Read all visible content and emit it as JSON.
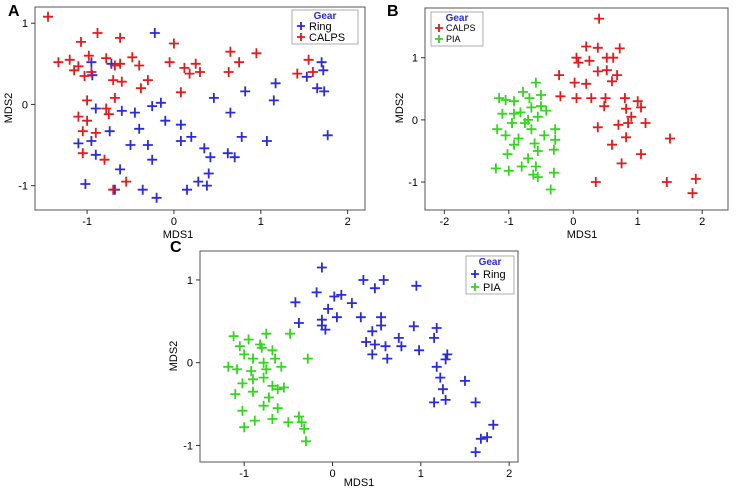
{
  "chart_data": [
    {
      "panel": "A",
      "type": "scatter",
      "title": "",
      "xlabel": "MDS1",
      "ylabel": "MDS2",
      "xlim": [
        -1.6,
        2.2
      ],
      "ylim": [
        -1.3,
        1.2
      ],
      "xticks": [
        -1,
        0,
        1,
        2
      ],
      "yticks": [
        -1,
        0,
        1
      ],
      "legend": {
        "title": "Gear",
        "position": "top-right"
      },
      "series": [
        {
          "name": "Ring",
          "color": "#2a2adf",
          "points": [
            [
              -0.22,
              0.88
            ],
            [
              -0.95,
              0.52
            ],
            [
              -0.94,
              0.36
            ],
            [
              -0.72,
              0.5
            ],
            [
              1.7,
              0.52
            ],
            [
              1.72,
              0.42
            ],
            [
              1.53,
              0.34
            ],
            [
              1.65,
              0.2
            ],
            [
              1.73,
              0.16
            ],
            [
              1.17,
              0.26
            ],
            [
              1.15,
              0.05
            ],
            [
              0.82,
              0.16
            ],
            [
              0.46,
              0.08
            ],
            [
              0.65,
              -0.1
            ],
            [
              -0.15,
              0.02
            ],
            [
              -0.25,
              -0.02
            ],
            [
              -0.6,
              -0.08
            ],
            [
              -0.45,
              -0.1
            ],
            [
              -0.9,
              -0.05
            ],
            [
              -0.1,
              -0.2
            ],
            [
              0.08,
              -0.25
            ],
            [
              -0.4,
              -0.3
            ],
            [
              -0.74,
              -0.33
            ],
            [
              -0.95,
              -0.45
            ],
            [
              -0.5,
              -0.5
            ],
            [
              0.2,
              -0.4
            ],
            [
              0.35,
              -0.54
            ],
            [
              0.08,
              -0.45
            ],
            [
              -0.3,
              -0.5
            ],
            [
              -0.25,
              -0.68
            ],
            [
              -0.62,
              -0.8
            ],
            [
              -0.9,
              -0.62
            ],
            [
              0.78,
              -0.4
            ],
            [
              0.62,
              -0.6
            ],
            [
              0.7,
              -0.65
            ],
            [
              1.07,
              -0.45
            ],
            [
              1.77,
              -0.38
            ],
            [
              0.42,
              -0.65
            ],
            [
              0.4,
              -0.85
            ],
            [
              0.38,
              -1.0
            ],
            [
              0.15,
              -1.05
            ],
            [
              -0.36,
              -1.05
            ],
            [
              -1.02,
              -0.98
            ],
            [
              -0.68,
              -1.05
            ],
            [
              -0.2,
              -1.15
            ],
            [
              0.28,
              -0.95
            ],
            [
              -1.1,
              -0.48
            ]
          ]
        },
        {
          "name": "CALPS",
          "color": "#e41a1c",
          "points": [
            [
              -1.45,
              1.08
            ],
            [
              -1.07,
              0.77
            ],
            [
              -0.88,
              0.88
            ],
            [
              -0.62,
              0.82
            ],
            [
              -1.33,
              0.52
            ],
            [
              -1.2,
              0.55
            ],
            [
              -0.98,
              0.6
            ],
            [
              -0.78,
              0.57
            ],
            [
              -0.48,
              0.58
            ],
            [
              -0.68,
              0.48
            ],
            [
              -0.62,
              0.5
            ],
            [
              -0.4,
              0.48
            ],
            [
              -1.1,
              0.47
            ],
            [
              -0.95,
              0.4
            ],
            [
              -1.15,
              0.42
            ],
            [
              -1.03,
              0.35
            ],
            [
              -0.7,
              0.3
            ],
            [
              -0.6,
              0.28
            ],
            [
              0.0,
              0.75
            ],
            [
              0.65,
              0.65
            ],
            [
              0.95,
              0.63
            ],
            [
              -0.05,
              0.52
            ],
            [
              0.12,
              0.45
            ],
            [
              0.25,
              0.5
            ],
            [
              0.75,
              0.52
            ],
            [
              0.63,
              0.4
            ],
            [
              0.18,
              0.38
            ],
            [
              0.3,
              0.4
            ],
            [
              -0.3,
              0.3
            ],
            [
              -0.38,
              0.2
            ],
            [
              0.08,
              0.15
            ],
            [
              1.55,
              0.55
            ],
            [
              1.6,
              0.4
            ],
            [
              1.42,
              0.38
            ],
            [
              -0.68,
              0.08
            ],
            [
              -1.0,
              0.05
            ],
            [
              -1.1,
              -0.15
            ],
            [
              -0.75,
              -0.12
            ],
            [
              -1.05,
              -0.33
            ],
            [
              -0.9,
              -0.35
            ],
            [
              -1.05,
              -0.6
            ],
            [
              -0.8,
              -0.68
            ],
            [
              -0.7,
              -1.05
            ],
            [
              -0.55,
              -0.95
            ],
            [
              -0.78,
              -0.05
            ],
            [
              -1.0,
              -0.2
            ]
          ]
        }
      ]
    },
    {
      "panel": "B",
      "type": "scatter",
      "title": "",
      "xlabel": "MDS1",
      "ylabel": "MDS2",
      "xlim": [
        -2.3,
        2.4
      ],
      "ylim": [
        -1.45,
        1.8
      ],
      "xticks": [
        -2,
        -1,
        0,
        1,
        2
      ],
      "yticks": [
        -1,
        0,
        1
      ],
      "legend": {
        "title": "Gear",
        "position": "top-left"
      },
      "series": [
        {
          "name": "CALPS",
          "color": "#e41a1c",
          "points": [
            [
              0.4,
              1.63
            ],
            [
              0.2,
              1.18
            ],
            [
              0.38,
              1.16
            ],
            [
              0.72,
              1.15
            ],
            [
              0.52,
              1.0
            ],
            [
              0.62,
              1.0
            ],
            [
              0.25,
              0.95
            ],
            [
              0.08,
              0.92
            ],
            [
              0.05,
              1.0
            ],
            [
              -0.22,
              0.72
            ],
            [
              0.38,
              0.78
            ],
            [
              0.52,
              0.8
            ],
            [
              0.68,
              0.72
            ],
            [
              0.6,
              0.62
            ],
            [
              0.02,
              0.6
            ],
            [
              0.2,
              0.58
            ],
            [
              0.05,
              0.35
            ],
            [
              0.28,
              0.35
            ],
            [
              -0.2,
              0.38
            ],
            [
              0.5,
              0.35
            ],
            [
              0.8,
              0.35
            ],
            [
              1.0,
              0.3
            ],
            [
              0.48,
              0.22
            ],
            [
              0.82,
              0.18
            ],
            [
              1.05,
              0.2
            ],
            [
              0.9,
              0.05
            ],
            [
              0.85,
              -0.05
            ],
            [
              1.12,
              -0.05
            ],
            [
              0.7,
              -0.08
            ],
            [
              0.38,
              -0.12
            ],
            [
              0.6,
              -0.4
            ],
            [
              0.82,
              -0.28
            ],
            [
              1.5,
              -0.3
            ],
            [
              1.05,
              -0.55
            ],
            [
              0.75,
              -0.7
            ],
            [
              1.45,
              -1.0
            ],
            [
              0.35,
              -1.0
            ],
            [
              1.9,
              -0.95
            ],
            [
              1.85,
              -1.18
            ]
          ]
        },
        {
          "name": "PIA",
          "color": "#33d61f",
          "points": [
            [
              -0.58,
              0.6
            ],
            [
              -0.78,
              0.45
            ],
            [
              -0.92,
              0.3
            ],
            [
              -1.05,
              0.32
            ],
            [
              -0.68,
              0.35
            ],
            [
              -0.5,
              0.4
            ],
            [
              -0.5,
              0.22
            ],
            [
              -0.65,
              0.2
            ],
            [
              -0.82,
              0.12
            ],
            [
              -1.15,
              0.35
            ],
            [
              -0.92,
              0.1
            ],
            [
              -1.1,
              0.1
            ],
            [
              -0.42,
              0.15
            ],
            [
              -0.55,
              0.05
            ],
            [
              -0.7,
              0.0
            ],
            [
              -0.95,
              -0.05
            ],
            [
              -1.18,
              -0.15
            ],
            [
              -1.05,
              -0.25
            ],
            [
              -0.65,
              -0.15
            ],
            [
              -0.28,
              -0.15
            ],
            [
              -0.45,
              -0.25
            ],
            [
              -0.28,
              -0.32
            ],
            [
              -0.6,
              -0.38
            ],
            [
              -0.92,
              -0.4
            ],
            [
              -1.02,
              -0.55
            ],
            [
              -0.7,
              -0.62
            ],
            [
              -0.55,
              -0.5
            ],
            [
              -0.3,
              -0.48
            ],
            [
              -0.8,
              -0.75
            ],
            [
              -0.58,
              -0.75
            ],
            [
              -1.2,
              -0.78
            ],
            [
              -1.0,
              -0.82
            ],
            [
              -0.62,
              -0.88
            ],
            [
              -0.3,
              -0.85
            ],
            [
              -0.55,
              -0.92
            ],
            [
              -0.35,
              -1.12
            ],
            [
              -0.85,
              -0.3
            ],
            [
              -0.75,
              -0.05
            ]
          ]
        }
      ]
    },
    {
      "panel": "C",
      "type": "scatter",
      "title": "",
      "xlabel": "MDS1",
      "ylabel": "MDS2",
      "xlim": [
        -1.5,
        2.1
      ],
      "ylim": [
        -1.2,
        1.35
      ],
      "xticks": [
        -1,
        0,
        1,
        2
      ],
      "yticks": [
        -1,
        0,
        1
      ],
      "legend": {
        "title": "Gear",
        "position": "top-right"
      },
      "series": [
        {
          "name": "Ring",
          "color": "#2a2adf",
          "points": [
            [
              -0.12,
              1.15
            ],
            [
              0.35,
              1.0
            ],
            [
              0.58,
              1.0
            ],
            [
              0.95,
              0.93
            ],
            [
              -0.18,
              0.85
            ],
            [
              0.02,
              0.8
            ],
            [
              0.1,
              0.82
            ],
            [
              0.22,
              0.72
            ],
            [
              0.48,
              0.9
            ],
            [
              -0.42,
              0.73
            ],
            [
              -0.38,
              0.48
            ],
            [
              -0.12,
              0.45
            ],
            [
              -0.12,
              0.52
            ],
            [
              -0.05,
              0.65
            ],
            [
              0.05,
              0.55
            ],
            [
              0.32,
              0.55
            ],
            [
              0.55,
              0.55
            ],
            [
              -0.08,
              0.4
            ],
            [
              0.45,
              0.38
            ],
            [
              0.55,
              0.45
            ],
            [
              0.92,
              0.44
            ],
            [
              1.18,
              0.42
            ],
            [
              0.75,
              0.3
            ],
            [
              1.15,
              0.3
            ],
            [
              0.38,
              0.25
            ],
            [
              0.48,
              0.22
            ],
            [
              0.6,
              0.2
            ],
            [
              0.78,
              0.2
            ],
            [
              0.98,
              0.15
            ],
            [
              1.3,
              0.1
            ],
            [
              1.28,
              0.04
            ],
            [
              0.62,
              0.05
            ],
            [
              0.45,
              0.1
            ],
            [
              1.18,
              -0.05
            ],
            [
              1.22,
              -0.18
            ],
            [
              1.25,
              -0.32
            ],
            [
              1.5,
              -0.22
            ],
            [
              1.15,
              -0.48
            ],
            [
              1.28,
              -0.45
            ],
            [
              1.62,
              -0.48
            ],
            [
              1.82,
              -0.75
            ],
            [
              1.75,
              -0.9
            ],
            [
              1.68,
              -0.92
            ],
            [
              1.62,
              -1.08
            ]
          ]
        },
        {
          "name": "PIA",
          "color": "#33d61f",
          "points": [
            [
              -1.12,
              0.32
            ],
            [
              -0.95,
              0.28
            ],
            [
              -0.75,
              0.35
            ],
            [
              -0.48,
              0.35
            ],
            [
              -1.05,
              0.2
            ],
            [
              -0.82,
              0.22
            ],
            [
              -0.8,
              0.18
            ],
            [
              -0.68,
              0.15
            ],
            [
              -1.0,
              0.1
            ],
            [
              -0.9,
              0.05
            ],
            [
              -0.78,
              0.0
            ],
            [
              -0.65,
              0.05
            ],
            [
              -1.18,
              -0.05
            ],
            [
              -1.08,
              -0.08
            ],
            [
              -0.92,
              -0.1
            ],
            [
              -0.75,
              -0.08
            ],
            [
              -0.58,
              -0.05
            ],
            [
              -0.28,
              0.05
            ],
            [
              -1.02,
              -0.25
            ],
            [
              -0.9,
              -0.2
            ],
            [
              -0.78,
              -0.18
            ],
            [
              -0.68,
              -0.28
            ],
            [
              -0.62,
              -0.32
            ],
            [
              -1.1,
              -0.38
            ],
            [
              -0.9,
              -0.35
            ],
            [
              -0.72,
              -0.42
            ],
            [
              -0.78,
              -0.52
            ],
            [
              -0.62,
              -0.55
            ],
            [
              -1.02,
              -0.58
            ],
            [
              -0.88,
              -0.7
            ],
            [
              -0.68,
              -0.68
            ],
            [
              -0.38,
              -0.65
            ],
            [
              -0.35,
              -0.72
            ],
            [
              -0.32,
              -0.8
            ],
            [
              -0.5,
              -0.72
            ],
            [
              -1.0,
              -0.78
            ],
            [
              -0.3,
              -0.95
            ],
            [
              -0.55,
              -0.3
            ]
          ]
        }
      ]
    }
  ]
}
